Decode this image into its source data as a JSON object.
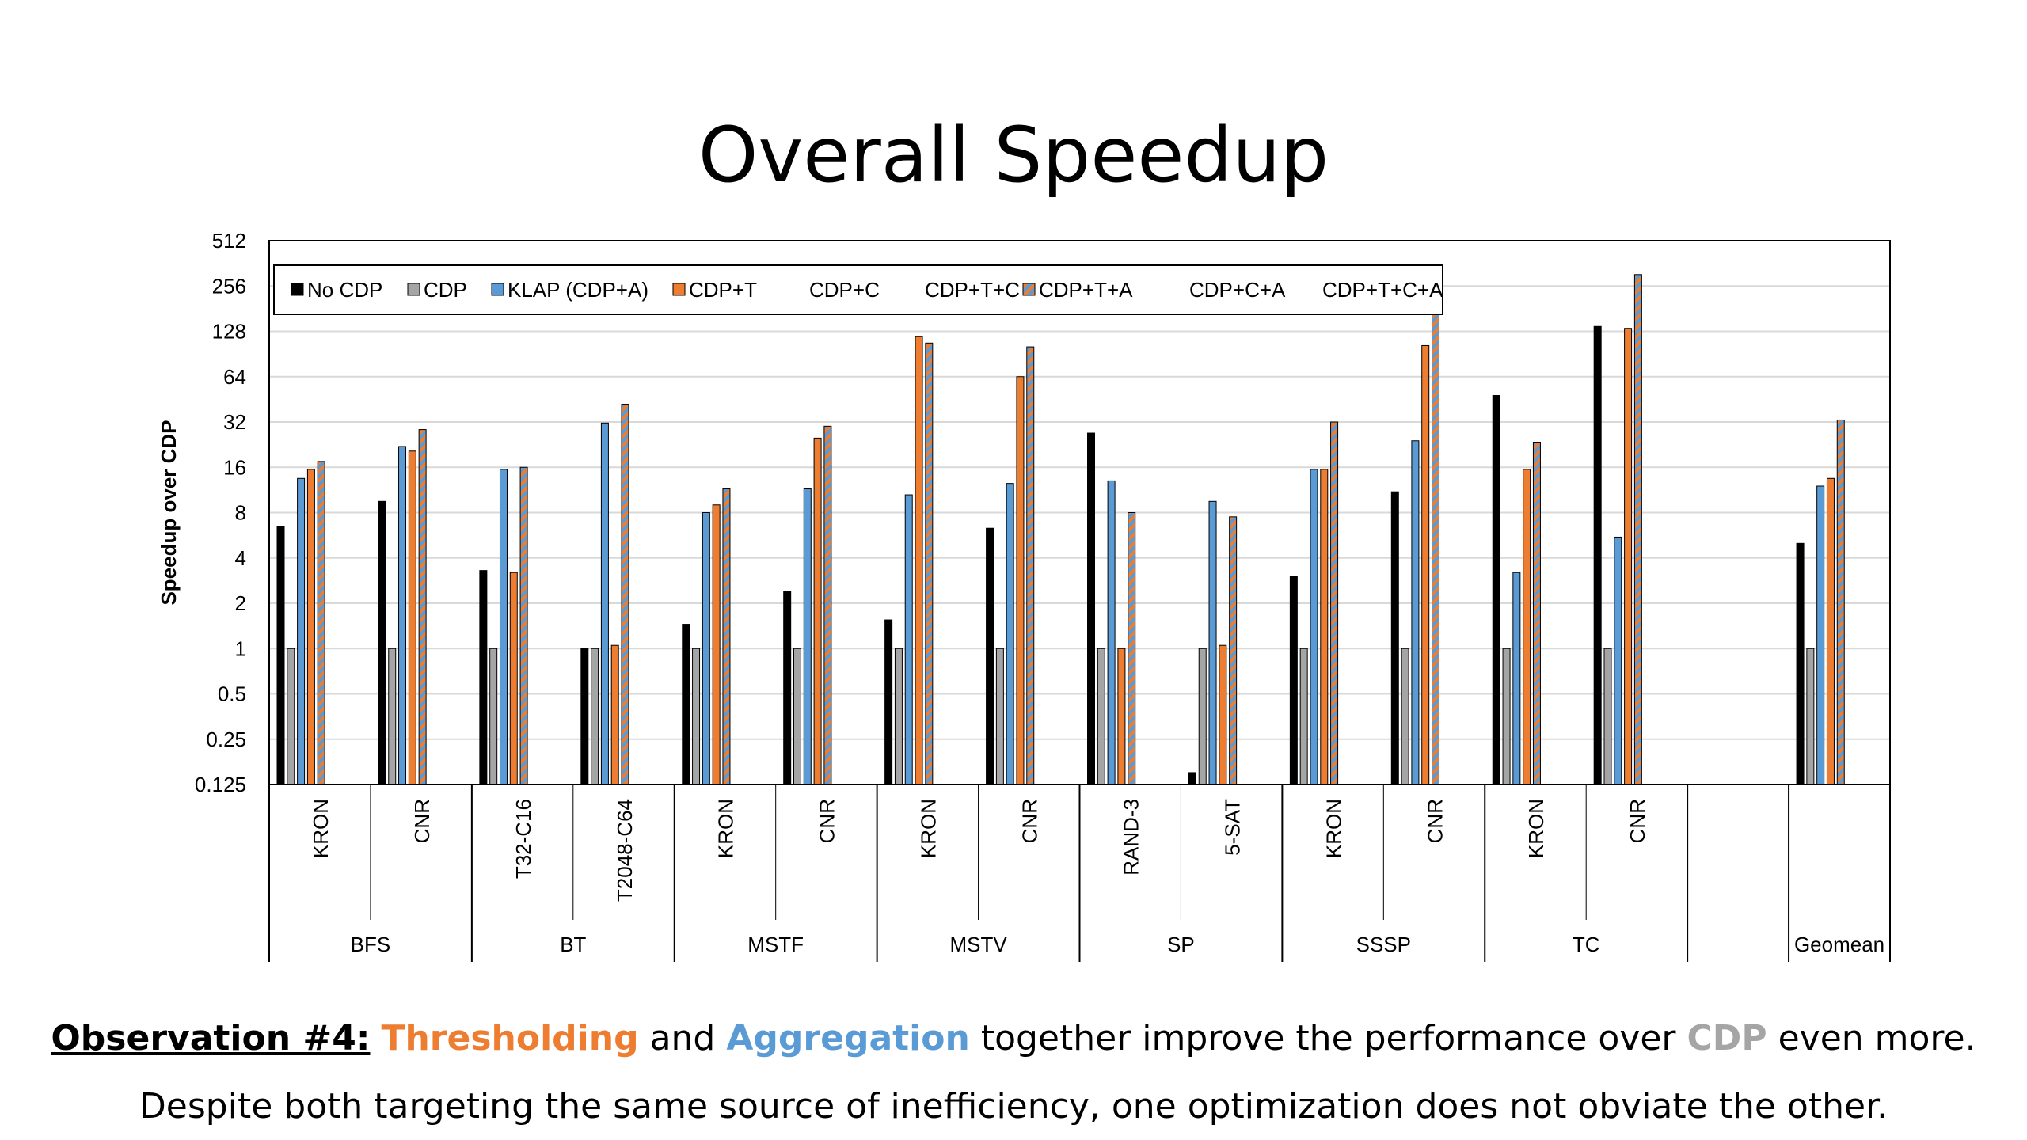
{
  "slide": {
    "title": "Overall Speedup",
    "observation_label": "Observation #4:",
    "observation_word_1": "Thresholding",
    "observation_text_2": "and",
    "observation_word_2": "Aggregation",
    "observation_text_3": "together improve the performance over",
    "observation_word_3": "CDP",
    "observation_text_4": "even more.",
    "observation_line_2": "Despite both targeting the same source of inefficiency, one optimization does not obviate the other."
  },
  "colors": {
    "orange": "#ED7D31",
    "blue": "#5B9BD5",
    "gray": "#A5A5A5"
  },
  "chart_data": {
    "type": "bar",
    "title": "",
    "xlabel": "",
    "ylabel": "Speedup over CDP",
    "yscale": "log2",
    "ylim": [
      0.125,
      512
    ],
    "yticks": [
      "0.125",
      "0.25",
      "0.5",
      "1",
      "2",
      "4",
      "8",
      "16",
      "32",
      "64",
      "128",
      "256",
      "512"
    ],
    "grid": true,
    "legend_position": "top-left, inside",
    "groups": [
      {
        "name": "BFS",
        "categories": [
          "KRON",
          "CNR"
        ]
      },
      {
        "name": "BT",
        "categories": [
          "T32-C16",
          "T2048-C64"
        ]
      },
      {
        "name": "MSTF",
        "categories": [
          "KRON",
          "CNR"
        ]
      },
      {
        "name": "MSTV",
        "categories": [
          "KRON",
          "CNR"
        ]
      },
      {
        "name": "SP",
        "categories": [
          "RAND-3",
          "5-SAT"
        ]
      },
      {
        "name": "SSSP",
        "categories": [
          "KRON",
          "CNR"
        ]
      },
      {
        "name": "TC",
        "categories": [
          "KRON",
          "CNR"
        ]
      },
      {
        "name": "",
        "categories": [
          ""
        ]
      },
      {
        "name": "Geomean",
        "categories": [
          ""
        ]
      }
    ],
    "series": [
      {
        "name": "No CDP",
        "color": "#000000",
        "pattern": "solid",
        "values": [
          6.5,
          9.5,
          3.3,
          1,
          1.45,
          2.4,
          1.55,
          6.3,
          27,
          0.15,
          3,
          11,
          48,
          138,
          null,
          5
        ]
      },
      {
        "name": "CDP",
        "color": "#A5A5A5",
        "pattern": "solid",
        "values": [
          1,
          1,
          1,
          1,
          1,
          1,
          1,
          1,
          1,
          1,
          1,
          1,
          1,
          1,
          null,
          1
        ]
      },
      {
        "name": "KLAP (CDP+A)",
        "color": "#5B9BD5",
        "pattern": "solid",
        "values": [
          13.5,
          22,
          15.5,
          31.5,
          8,
          11.5,
          10.5,
          12.5,
          13,
          9.5,
          15.5,
          24,
          3.2,
          5.5,
          null,
          12
        ]
      },
      {
        "name": "CDP+T",
        "color": "#ED7D31",
        "pattern": "solid",
        "values": [
          15.5,
          20.5,
          3.2,
          1.05,
          9,
          25,
          118,
          64,
          1,
          1.05,
          15.5,
          103,
          15.5,
          134,
          null,
          13.5
        ]
      },
      {
        "name": "CDP+C",
        "color": "#FFFFFF",
        "pattern": "none",
        "values": [
          null,
          null,
          null,
          null,
          null,
          null,
          null,
          null,
          null,
          null,
          null,
          null,
          null,
          null,
          null,
          null
        ]
      },
      {
        "name": "CDP+T+C",
        "color": "#FFFFFF",
        "pattern": "none",
        "values": [
          null,
          null,
          null,
          null,
          null,
          null,
          null,
          null,
          null,
          null,
          null,
          null,
          null,
          null,
          null,
          null
        ]
      },
      {
        "name": "CDP+T+A",
        "color": "#5B9BD5",
        "pattern": "orange-blue-stripes",
        "values": [
          17.5,
          28.5,
          16,
          42,
          11.5,
          30,
          107,
          101,
          8,
          7.5,
          32,
          252,
          23.5,
          305,
          null,
          33
        ]
      },
      {
        "name": "CDP+C+A",
        "color": "#FFFFFF",
        "pattern": "none",
        "values": [
          null,
          null,
          null,
          null,
          null,
          null,
          null,
          null,
          null,
          null,
          null,
          null,
          null,
          null,
          null,
          null
        ]
      },
      {
        "name": "CDP+T+C+A",
        "color": "#FFFFFF",
        "pattern": "none",
        "values": [
          null,
          null,
          null,
          null,
          null,
          null,
          null,
          null,
          null,
          null,
          null,
          null,
          null,
          null,
          null,
          null
        ]
      }
    ]
  }
}
